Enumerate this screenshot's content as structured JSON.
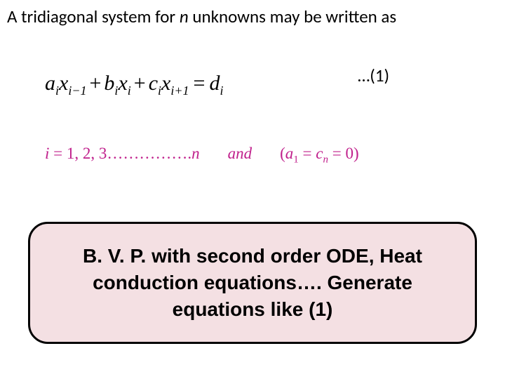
{
  "heading": {
    "pre": "A tridiagonal system for ",
    "n": "n",
    "post": " unknowns may be written as"
  },
  "equation": {
    "a": "a",
    "ai_sub": "i",
    "x1": "x",
    "x1_sub": "i−1",
    "plus1": "+",
    "b": "b",
    "bi_sub": "i",
    "x2": "x",
    "x2_sub": "i",
    "plus2": "+",
    "c": "c",
    "ci_sub": "i",
    "x3": "x",
    "x3_sub": "i+1",
    "eq": "=",
    "d": "d",
    "di_sub": "i",
    "number_label": "…(1)"
  },
  "constraints": {
    "i": "i",
    "eq": " = ",
    "seq": "1, 2, 3…………….",
    "n": "n",
    "and": "and",
    "open": "(",
    "a": "a",
    "a_sub": "1",
    "mid": " = ",
    "c": "c",
    "c_sub": "n",
    "zero": " = 0",
    "close": ")"
  },
  "callout": {
    "text": "B. V. P. with second order ODE, Heat conduction equations…. Generate equations like (1)"
  },
  "colors": {
    "background": "#ffffff",
    "text": "#000000",
    "magenta": "#c0208c",
    "callout_bg": "#f4e0e3",
    "callout_border": "#000000"
  },
  "typography": {
    "heading_fontsize": 25,
    "equation_fontsize": 30,
    "constraints_fontsize": 23,
    "callout_fontsize": 28,
    "callout_weight": 900
  }
}
